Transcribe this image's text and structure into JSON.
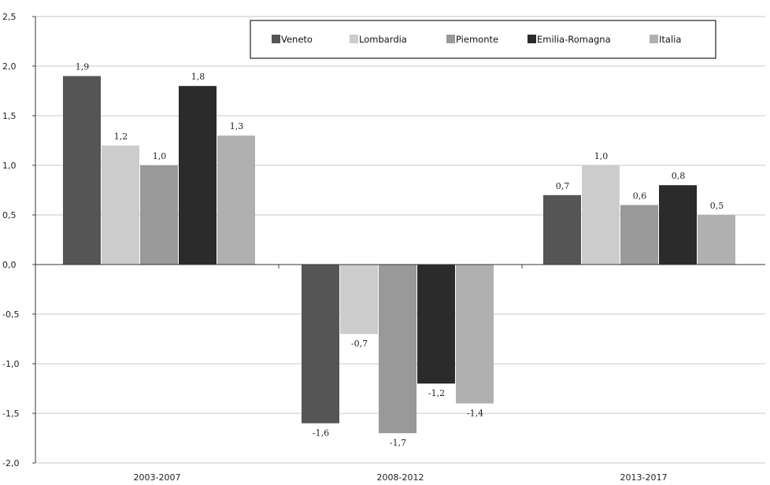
{
  "chart_data": {
    "type": "bar",
    "title": "",
    "xlabel": "",
    "ylabel": "",
    "ylim": [
      -2.0,
      2.5
    ],
    "yticks": [
      -2.0,
      -1.5,
      -1.0,
      -0.5,
      0.0,
      0.5,
      1.0,
      1.5,
      2.0,
      2.5
    ],
    "ytick_labels": [
      "-2,0",
      "-1,5",
      "-1,0",
      "-0,5",
      "0,0",
      "0,5",
      "1,0",
      "1,5",
      "2,0",
      "2,5"
    ],
    "grid": true,
    "legend_position": "top-right",
    "categories": [
      "2003-2007",
      "2008-2012",
      "2013-2017"
    ],
    "series": [
      {
        "name": "Veneto",
        "color": "#555555",
        "values": [
          1.9,
          -1.6,
          0.7
        ],
        "labels": [
          "1,9",
          "-1,6",
          "0,7"
        ]
      },
      {
        "name": "Lombardia",
        "color": "#cccccc",
        "values": [
          1.2,
          -0.7,
          1.0
        ],
        "labels": [
          "1,2",
          "-0,7",
          "1,0"
        ]
      },
      {
        "name": "Piemonte",
        "color": "#999999",
        "values": [
          1.0,
          -1.7,
          0.6
        ],
        "labels": [
          "1,0",
          "-1,7",
          "0,6"
        ]
      },
      {
        "name": "Emilia-Romagna",
        "color": "#2b2b2b",
        "values": [
          1.8,
          -1.2,
          0.8
        ],
        "labels": [
          "1,8",
          "-1,2",
          "0,8"
        ]
      },
      {
        "name": "Italia",
        "color": "#b0b0b0",
        "values": [
          1.3,
          -1.4,
          0.5
        ],
        "labels": [
          "1,3",
          "-1,4",
          "0,5"
        ]
      }
    ]
  }
}
